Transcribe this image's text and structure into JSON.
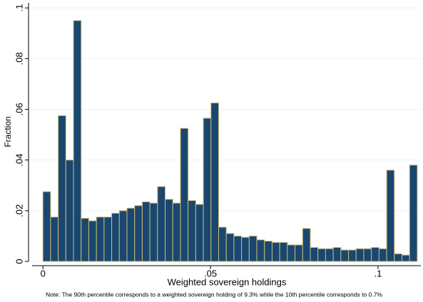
{
  "chart_data": {
    "type": "histogram",
    "ylabel": "Fraction",
    "xlabel": "Weighted sovereign holdings",
    "note": "Note: The 90th percentile corresponds to a weighted sovereign holding of 9.3% while the 10th percentile corresponds to 0.7%",
    "bins": [
      0,
      0.00228,
      0.00456,
      0.00684,
      0.00912,
      0.0114,
      0.01368,
      0.01596,
      0.01824,
      0.02052,
      0.0228,
      0.02508,
      0.02736,
      0.02964,
      0.03192,
      0.0342,
      0.03648,
      0.03876,
      0.04104,
      0.04332,
      0.0456,
      0.04788,
      0.05016,
      0.05244,
      0.05472,
      0.057,
      0.05928,
      0.06156,
      0.06384,
      0.06612,
      0.0684,
      0.07068,
      0.07296,
      0.07524,
      0.07752,
      0.0798,
      0.08208,
      0.08436,
      0.08664,
      0.08892,
      0.0912,
      0.09348,
      0.09576,
      0.09804,
      0.10032,
      0.1026,
      0.10488,
      0.10716,
      0.10944,
      0.11172
    ],
    "values": [
      0.0275,
      0.0175,
      0.0575,
      0.04,
      0.095,
      0.017,
      0.016,
      0.0175,
      0.0175,
      0.019,
      0.02,
      0.021,
      0.022,
      0.0235,
      0.023,
      0.0295,
      0.0245,
      0.023,
      0.0525,
      0.024,
      0.0225,
      0.0565,
      0.0625,
      0.0135,
      0.011,
      0.01,
      0.0095,
      0.01,
      0.0085,
      0.008,
      0.0075,
      0.0075,
      0.0065,
      0.0065,
      0.013,
      0.0055,
      0.005,
      0.005,
      0.0055,
      0.0045,
      0.0045,
      0.005,
      0.005,
      0.0055,
      0.005,
      0.036,
      0.003,
      0.0025,
      0.038
    ],
    "color": "#1a476f",
    "edgecolor": "#c9b97a",
    "xlim": [
      -0.0043,
      0.1128
    ],
    "ylim": [
      0,
      0.102
    ],
    "xticks": [
      0,
      {
        "value": 0.05,
        "label": ".05"
      },
      {
        "value": 0.1,
        "label": ".1"
      }
    ],
    "yticks": [
      0,
      {
        "value": 0.02,
        "label": ".02"
      },
      {
        "value": 0.04,
        "label": ".04"
      },
      {
        "value": 0.06,
        "label": ".06"
      },
      {
        "value": 0.08,
        "label": ".08"
      },
      {
        "value": 0.1,
        "label": ".1"
      }
    ],
    "grid": true
  }
}
